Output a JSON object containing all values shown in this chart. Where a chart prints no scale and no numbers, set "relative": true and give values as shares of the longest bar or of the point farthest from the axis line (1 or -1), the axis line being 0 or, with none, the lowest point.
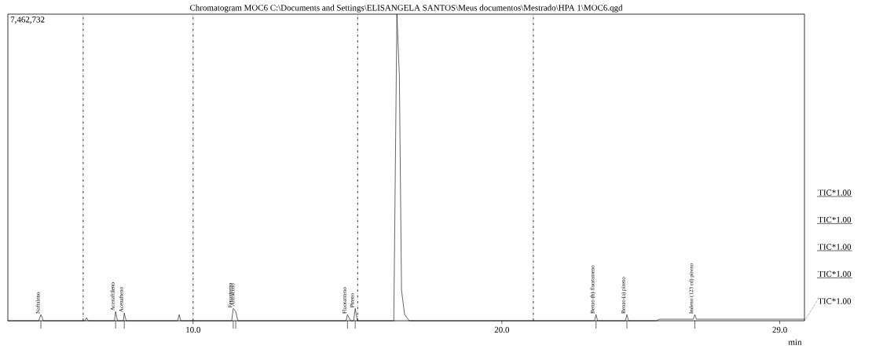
{
  "chart_data": {
    "type": "line",
    "title": "Chromatogram MOC6 C:\\Documents and Settings\\ELISANGELA SANTOS\\Meus documentos\\Mestrado\\HPA 1\\MOC6.qgd",
    "xlabel": "min",
    "relative": true,
    "grid": false,
    "marker": "none",
    "line_style": "solid",
    "xlim": [
      4.0,
      29.8
    ],
    "xticks": [
      {
        "value": 10,
        "label": "10.0"
      },
      {
        "value": 20,
        "label": "20.0"
      },
      {
        "value": 29,
        "label": "29.0"
      }
    ],
    "series": [
      {
        "color": "#000000",
        "x": [
          4.0,
          5.0,
          5.07,
          5.15,
          6.5,
          6.55,
          6.6,
          7.45,
          7.49,
          7.55,
          7.74,
          7.77,
          7.83,
          9.5,
          9.55,
          9.6,
          11.25,
          11.3,
          11.38,
          11.45,
          14.95,
          15.0,
          15.1,
          15.2,
          15.25,
          15.32,
          16.5,
          16.6,
          16.68,
          16.75,
          16.85,
          17.0,
          23.0,
          23.05,
          23.1,
          24.0,
          24.05,
          24.1,
          25.0,
          25.1,
          26.2,
          26.25,
          26.3,
          29.8
        ],
        "values": [
          0,
          0,
          0.02,
          0,
          0,
          0.01,
          0,
          0,
          0.03,
          0,
          0,
          0.025,
          0,
          0,
          0.02,
          0,
          0,
          0.04,
          0.03,
          0,
          0,
          0.02,
          0,
          0,
          0.04,
          0,
          0,
          1,
          0.8,
          0.1,
          0.02,
          0,
          0,
          0.02,
          0,
          0,
          0.02,
          0,
          0,
          0.005,
          0.005,
          0.02,
          0.005,
          0.005
        ]
      }
    ],
    "ref_lines": [
      {
        "axis": "x",
        "value": 6.44,
        "line_style": "dashed",
        "color": "#000000"
      },
      {
        "axis": "x",
        "value": 10.0,
        "line_style": "dashed",
        "color": "#000000"
      },
      {
        "axis": "x",
        "value": 15.33,
        "line_style": "dashed",
        "color": "#000000"
      },
      {
        "axis": "x",
        "value": 21.02,
        "line_style": "dashed",
        "color": "#000000"
      }
    ],
    "annotations": [
      "7,462,732",
      "TIC*1.00",
      "TIC*1.00",
      "TIC*1.00",
      "TIC*1.00",
      "TIC*1.00",
      {
        "text": "Naftaleno",
        "x": 5.07,
        "y": 0.02
      },
      {
        "text": "Acenaftileno",
        "x": 7.49,
        "y": 0.03
      },
      {
        "text": "Acenafteno",
        "x": 7.77,
        "y": 0.025
      },
      {
        "text": "Fenantreno",
        "x": 11.3,
        "y": 0.04
      },
      {
        "text": "Antraceno",
        "x": 11.38,
        "y": 0.03
      },
      {
        "text": "Fluoranteno",
        "x": 15.0,
        "y": 0.02
      },
      {
        "text": "Pireno",
        "x": 15.25,
        "y": 0.04
      },
      {
        "text": "Benzo (b) fluoranteno",
        "x": 23.05,
        "y": 0.02
      },
      {
        "text": "Benzo (a) pireno",
        "x": 24.05,
        "y": 0.02
      },
      {
        "text": "Indeno (123 cd) pireno",
        "x": 26.25,
        "y": 0.02
      }
    ]
  }
}
